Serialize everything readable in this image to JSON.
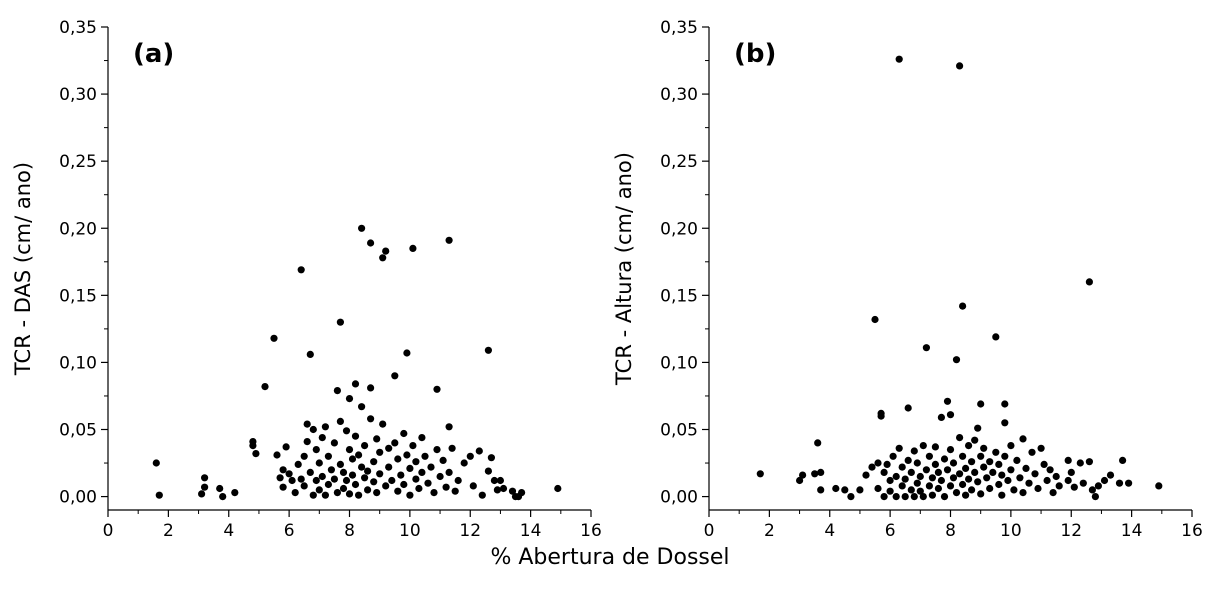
{
  "xlabel": "% Abertura de Dossel",
  "chart_data": [
    {
      "type": "scatter",
      "panel_label": "(a)",
      "ylabel": "TCR - DAS (cm/ ano)",
      "xlim": [
        0,
        16
      ],
      "ylim": [
        -0.01,
        0.35
      ],
      "xticks": [
        0,
        2,
        4,
        6,
        8,
        10,
        12,
        14,
        16
      ],
      "xtick_labels": [
        "0",
        "2",
        "4",
        "6",
        "8",
        "10",
        "12",
        "14",
        "16"
      ],
      "yticks": [
        0,
        0.05,
        0.1,
        0.15,
        0.2,
        0.25,
        0.3,
        0.35
      ],
      "ytick_labels": [
        "0,00",
        "0,05",
        "0,10",
        "0,15",
        "0,20",
        "0,25",
        "0,30",
        "0,35"
      ],
      "grid": false,
      "points": [
        [
          1.6,
          0.025
        ],
        [
          1.7,
          0.001
        ],
        [
          3.1,
          0.002
        ],
        [
          3.2,
          0.014
        ],
        [
          3.2,
          0.007
        ],
        [
          3.7,
          0.006
        ],
        [
          3.8,
          0.0
        ],
        [
          4.2,
          0.003
        ],
        [
          4.8,
          0.038
        ],
        [
          4.8,
          0.041
        ],
        [
          4.9,
          0.032
        ],
        [
          5.2,
          0.082
        ],
        [
          5.5,
          0.118
        ],
        [
          5.6,
          0.031
        ],
        [
          5.7,
          0.014
        ],
        [
          5.8,
          0.02
        ],
        [
          5.8,
          0.007
        ],
        [
          5.9,
          0.037
        ],
        [
          6.0,
          0.017
        ],
        [
          6.1,
          0.012
        ],
        [
          6.2,
          0.003
        ],
        [
          6.3,
          0.024
        ],
        [
          6.4,
          0.169
        ],
        [
          6.4,
          0.013
        ],
        [
          6.5,
          0.03
        ],
        [
          6.5,
          0.008
        ],
        [
          6.6,
          0.041
        ],
        [
          6.6,
          0.054
        ],
        [
          6.7,
          0.106
        ],
        [
          6.7,
          0.018
        ],
        [
          6.8,
          0.05
        ],
        [
          6.8,
          0.001
        ],
        [
          6.9,
          0.035
        ],
        [
          6.9,
          0.012
        ],
        [
          7.0,
          0.025
        ],
        [
          7.0,
          0.005
        ],
        [
          7.1,
          0.044
        ],
        [
          7.1,
          0.015
        ],
        [
          7.2,
          0.052
        ],
        [
          7.2,
          0.001
        ],
        [
          7.3,
          0.03
        ],
        [
          7.3,
          0.009
        ],
        [
          7.4,
          0.02
        ],
        [
          7.5,
          0.04
        ],
        [
          7.5,
          0.013
        ],
        [
          7.6,
          0.079
        ],
        [
          7.6,
          0.003
        ],
        [
          7.7,
          0.13
        ],
        [
          7.7,
          0.056
        ],
        [
          7.7,
          0.024
        ],
        [
          7.8,
          0.018
        ],
        [
          7.8,
          0.006
        ],
        [
          7.9,
          0.049
        ],
        [
          7.9,
          0.012
        ],
        [
          8.0,
          0.073
        ],
        [
          8.0,
          0.035
        ],
        [
          8.0,
          0.002
        ],
        [
          8.1,
          0.028
        ],
        [
          8.1,
          0.016
        ],
        [
          8.2,
          0.084
        ],
        [
          8.2,
          0.045
        ],
        [
          8.2,
          0.009
        ],
        [
          8.3,
          0.031
        ],
        [
          8.3,
          0.001
        ],
        [
          8.4,
          0.2
        ],
        [
          8.4,
          0.067
        ],
        [
          8.4,
          0.022
        ],
        [
          8.5,
          0.014
        ],
        [
          8.5,
          0.038
        ],
        [
          8.6,
          0.005
        ],
        [
          8.6,
          0.019
        ],
        [
          8.7,
          0.189
        ],
        [
          8.7,
          0.081
        ],
        [
          8.7,
          0.058
        ],
        [
          8.8,
          0.026
        ],
        [
          8.8,
          0.011
        ],
        [
          8.9,
          0.043
        ],
        [
          8.9,
          0.003
        ],
        [
          9.0,
          0.033
        ],
        [
          9.0,
          0.017
        ],
        [
          9.1,
          0.178
        ],
        [
          9.1,
          0.054
        ],
        [
          9.2,
          0.183
        ],
        [
          9.2,
          0.008
        ],
        [
          9.3,
          0.036
        ],
        [
          9.3,
          0.022
        ],
        [
          9.4,
          0.012
        ],
        [
          9.5,
          0.09
        ],
        [
          9.5,
          0.04
        ],
        [
          9.6,
          0.004
        ],
        [
          9.6,
          0.028
        ],
        [
          9.7,
          0.016
        ],
        [
          9.8,
          0.047
        ],
        [
          9.8,
          0.009
        ],
        [
          9.9,
          0.107
        ],
        [
          9.9,
          0.031
        ],
        [
          10.0,
          0.021
        ],
        [
          10.0,
          0.001
        ],
        [
          10.1,
          0.185
        ],
        [
          10.1,
          0.038
        ],
        [
          10.2,
          0.013
        ],
        [
          10.2,
          0.026
        ],
        [
          10.3,
          0.006
        ],
        [
          10.4,
          0.044
        ],
        [
          10.4,
          0.018
        ],
        [
          10.5,
          0.03
        ],
        [
          10.6,
          0.01
        ],
        [
          10.7,
          0.022
        ],
        [
          10.8,
          0.003
        ],
        [
          10.9,
          0.08
        ],
        [
          10.9,
          0.035
        ],
        [
          11.0,
          0.015
        ],
        [
          11.1,
          0.027
        ],
        [
          11.2,
          0.007
        ],
        [
          11.3,
          0.191
        ],
        [
          11.3,
          0.052
        ],
        [
          11.3,
          0.018
        ],
        [
          11.4,
          0.036
        ],
        [
          11.5,
          0.004
        ],
        [
          11.6,
          0.012
        ],
        [
          11.8,
          0.025
        ],
        [
          12.0,
          0.03
        ],
        [
          12.1,
          0.008
        ],
        [
          12.3,
          0.034
        ],
        [
          12.4,
          0.001
        ],
        [
          12.6,
          0.109
        ],
        [
          12.6,
          0.019
        ],
        [
          12.7,
          0.029
        ],
        [
          12.8,
          0.012
        ],
        [
          12.9,
          0.005
        ],
        [
          13.0,
          0.012
        ],
        [
          13.1,
          0.006
        ],
        [
          13.4,
          0.004
        ],
        [
          13.5,
          0.0
        ],
        [
          13.6,
          0.0
        ],
        [
          13.7,
          0.003
        ],
        [
          14.9,
          0.006
        ]
      ]
    },
    {
      "type": "scatter",
      "panel_label": "(b)",
      "ylabel": "TCR - Altura (cm/ ano)",
      "xlim": [
        0,
        16
      ],
      "ylim": [
        -0.01,
        0.35
      ],
      "xticks": [
        0,
        2,
        4,
        6,
        8,
        10,
        12,
        14,
        16
      ],
      "xtick_labels": [
        "0",
        "2",
        "4",
        "6",
        "8",
        "10",
        "12",
        "14",
        "16"
      ],
      "yticks": [
        0,
        0.05,
        0.1,
        0.15,
        0.2,
        0.25,
        0.3,
        0.35
      ],
      "ytick_labels": [
        "0,00",
        "0,05",
        "0,10",
        "0,15",
        "0,20",
        "0,25",
        "0,30",
        "0,35"
      ],
      "grid": false,
      "points": [
        [
          1.7,
          0.017
        ],
        [
          3.0,
          0.012
        ],
        [
          3.1,
          0.016
        ],
        [
          3.5,
          0.017
        ],
        [
          3.6,
          0.04
        ],
        [
          3.7,
          0.018
        ],
        [
          3.7,
          0.005
        ],
        [
          4.2,
          0.006
        ],
        [
          4.5,
          0.005
        ],
        [
          4.7,
          0.0
        ],
        [
          5.0,
          0.005
        ],
        [
          5.2,
          0.016
        ],
        [
          5.4,
          0.022
        ],
        [
          5.5,
          0.132
        ],
        [
          5.6,
          0.025
        ],
        [
          5.6,
          0.006
        ],
        [
          5.7,
          0.062
        ],
        [
          5.7,
          0.06
        ],
        [
          5.8,
          0.018
        ],
        [
          5.8,
          0.0
        ],
        [
          5.9,
          0.024
        ],
        [
          6.0,
          0.012
        ],
        [
          6.0,
          0.004
        ],
        [
          6.1,
          0.03
        ],
        [
          6.2,
          0.0
        ],
        [
          6.2,
          0.015
        ],
        [
          6.3,
          0.326
        ],
        [
          6.3,
          0.036
        ],
        [
          6.4,
          0.008
        ],
        [
          6.4,
          0.022
        ],
        [
          6.5,
          0.0
        ],
        [
          6.5,
          0.013
        ],
        [
          6.6,
          0.066
        ],
        [
          6.6,
          0.027
        ],
        [
          6.7,
          0.005
        ],
        [
          6.7,
          0.018
        ],
        [
          6.8,
          0.034
        ],
        [
          6.8,
          0.0
        ],
        [
          6.9,
          0.01
        ],
        [
          6.9,
          0.025
        ],
        [
          7.0,
          0.004
        ],
        [
          7.0,
          0.015
        ],
        [
          7.1,
          0.038
        ],
        [
          7.1,
          0.0
        ],
        [
          7.2,
          0.111
        ],
        [
          7.2,
          0.02
        ],
        [
          7.3,
          0.008
        ],
        [
          7.3,
          0.03
        ],
        [
          7.4,
          0.014
        ],
        [
          7.4,
          0.001
        ],
        [
          7.5,
          0.024
        ],
        [
          7.5,
          0.037
        ],
        [
          7.6,
          0.006
        ],
        [
          7.6,
          0.018
        ],
        [
          7.7,
          0.059
        ],
        [
          7.7,
          0.012
        ],
        [
          7.8,
          0.028
        ],
        [
          7.8,
          0.0
        ],
        [
          7.9,
          0.071
        ],
        [
          7.9,
          0.02
        ],
        [
          8.0,
          0.061
        ],
        [
          8.0,
          0.035
        ],
        [
          8.0,
          0.008
        ],
        [
          8.1,
          0.014
        ],
        [
          8.1,
          0.025
        ],
        [
          8.2,
          0.102
        ],
        [
          8.2,
          0.003
        ],
        [
          8.3,
          0.321
        ],
        [
          8.3,
          0.044
        ],
        [
          8.3,
          0.017
        ],
        [
          8.4,
          0.142
        ],
        [
          8.4,
          0.03
        ],
        [
          8.4,
          0.009
        ],
        [
          8.5,
          0.021
        ],
        [
          8.5,
          0.001
        ],
        [
          8.6,
          0.038
        ],
        [
          8.6,
          0.013
        ],
        [
          8.7,
          0.026
        ],
        [
          8.7,
          0.005
        ],
        [
          8.8,
          0.042
        ],
        [
          8.8,
          0.018
        ],
        [
          8.9,
          0.051
        ],
        [
          8.9,
          0.011
        ],
        [
          9.0,
          0.069
        ],
        [
          9.0,
          0.03
        ],
        [
          9.0,
          0.002
        ],
        [
          9.1,
          0.022
        ],
        [
          9.1,
          0.036
        ],
        [
          9.2,
          0.014
        ],
        [
          9.3,
          0.006
        ],
        [
          9.3,
          0.026
        ],
        [
          9.4,
          0.018
        ],
        [
          9.5,
          0.119
        ],
        [
          9.5,
          0.033
        ],
        [
          9.6,
          0.009
        ],
        [
          9.6,
          0.024
        ],
        [
          9.7,
          0.001
        ],
        [
          9.7,
          0.016
        ],
        [
          9.8,
          0.069
        ],
        [
          9.8,
          0.055
        ],
        [
          9.8,
          0.03
        ],
        [
          9.9,
          0.012
        ],
        [
          10.0,
          0.038
        ],
        [
          10.0,
          0.02
        ],
        [
          10.1,
          0.005
        ],
        [
          10.2,
          0.027
        ],
        [
          10.3,
          0.014
        ],
        [
          10.4,
          0.043
        ],
        [
          10.4,
          0.003
        ],
        [
          10.5,
          0.021
        ],
        [
          10.6,
          0.01
        ],
        [
          10.7,
          0.033
        ],
        [
          10.8,
          0.017
        ],
        [
          10.9,
          0.006
        ],
        [
          11.0,
          0.036
        ],
        [
          11.1,
          0.024
        ],
        [
          11.2,
          0.012
        ],
        [
          11.3,
          0.02
        ],
        [
          11.4,
          0.003
        ],
        [
          11.5,
          0.015
        ],
        [
          11.6,
          0.008
        ],
        [
          11.9,
          0.027
        ],
        [
          11.9,
          0.012
        ],
        [
          12.0,
          0.018
        ],
        [
          12.1,
          0.007
        ],
        [
          12.3,
          0.025
        ],
        [
          12.4,
          0.01
        ],
        [
          12.6,
          0.16
        ],
        [
          12.6,
          0.026
        ],
        [
          12.7,
          0.005
        ],
        [
          12.8,
          0.0
        ],
        [
          12.9,
          0.008
        ],
        [
          13.1,
          0.012
        ],
        [
          13.3,
          0.016
        ],
        [
          13.6,
          0.01
        ],
        [
          13.7,
          0.027
        ],
        [
          13.9,
          0.01
        ],
        [
          14.9,
          0.008
        ]
      ]
    }
  ]
}
